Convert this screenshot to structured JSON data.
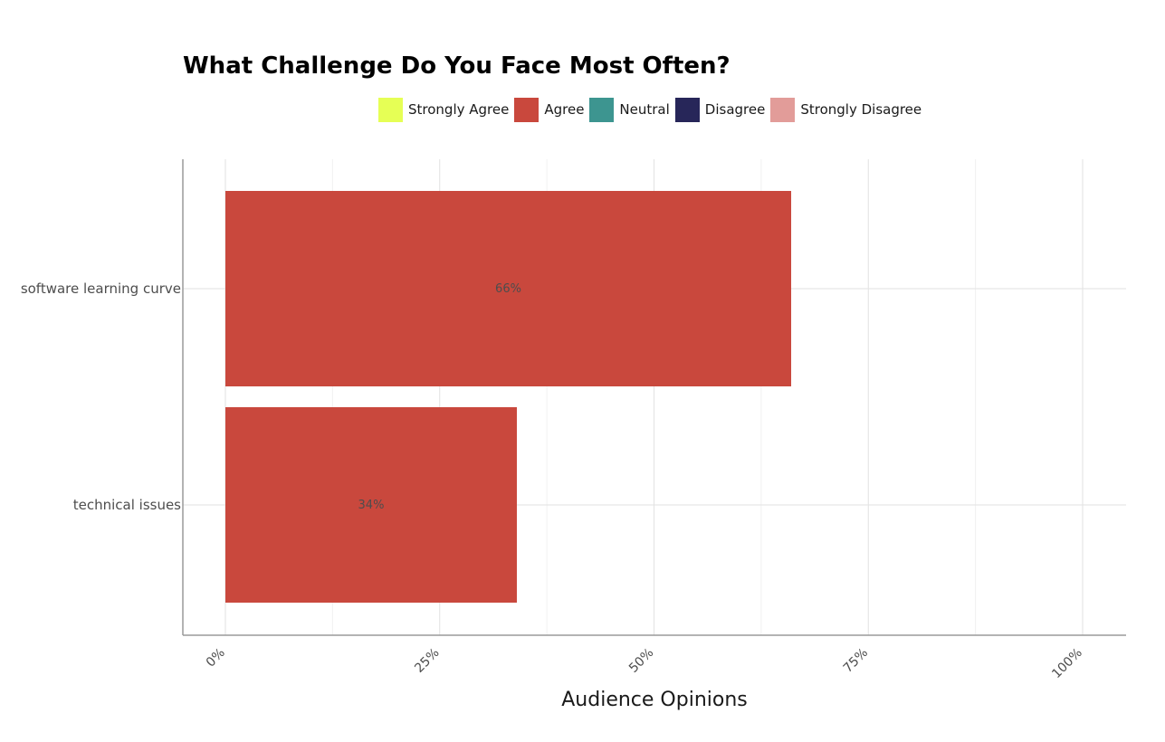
{
  "chart_data": {
    "type": "bar",
    "orientation": "horizontal",
    "title": "What Challenge Do You Face Most Often?",
    "xlabel": "Audience Opinions",
    "ylabel": "",
    "xlim": [
      0,
      100
    ],
    "x_ticks": [
      0,
      25,
      50,
      75,
      100
    ],
    "x_tick_labels": [
      "0%",
      "25%",
      "50%",
      "75%",
      "100%"
    ],
    "categories": [
      "software learning curve",
      "technical issues"
    ],
    "series": [
      {
        "name": "Strongly Agree",
        "color": "#E6FF55",
        "values": [
          0,
          0
        ]
      },
      {
        "name": "Agree",
        "color": "#C9483D",
        "values": [
          66,
          34
        ]
      },
      {
        "name": "Neutral",
        "color": "#3D9590",
        "values": [
          0,
          0
        ]
      },
      {
        "name": "Disagree",
        "color": "#272659",
        "values": [
          0,
          0
        ]
      },
      {
        "name": "Strongly Disagree",
        "color": "#E29C99",
        "values": [
          0,
          0
        ]
      }
    ],
    "data_labels": [
      "66%",
      "34%"
    ],
    "legend_position": "top",
    "grid": true
  }
}
